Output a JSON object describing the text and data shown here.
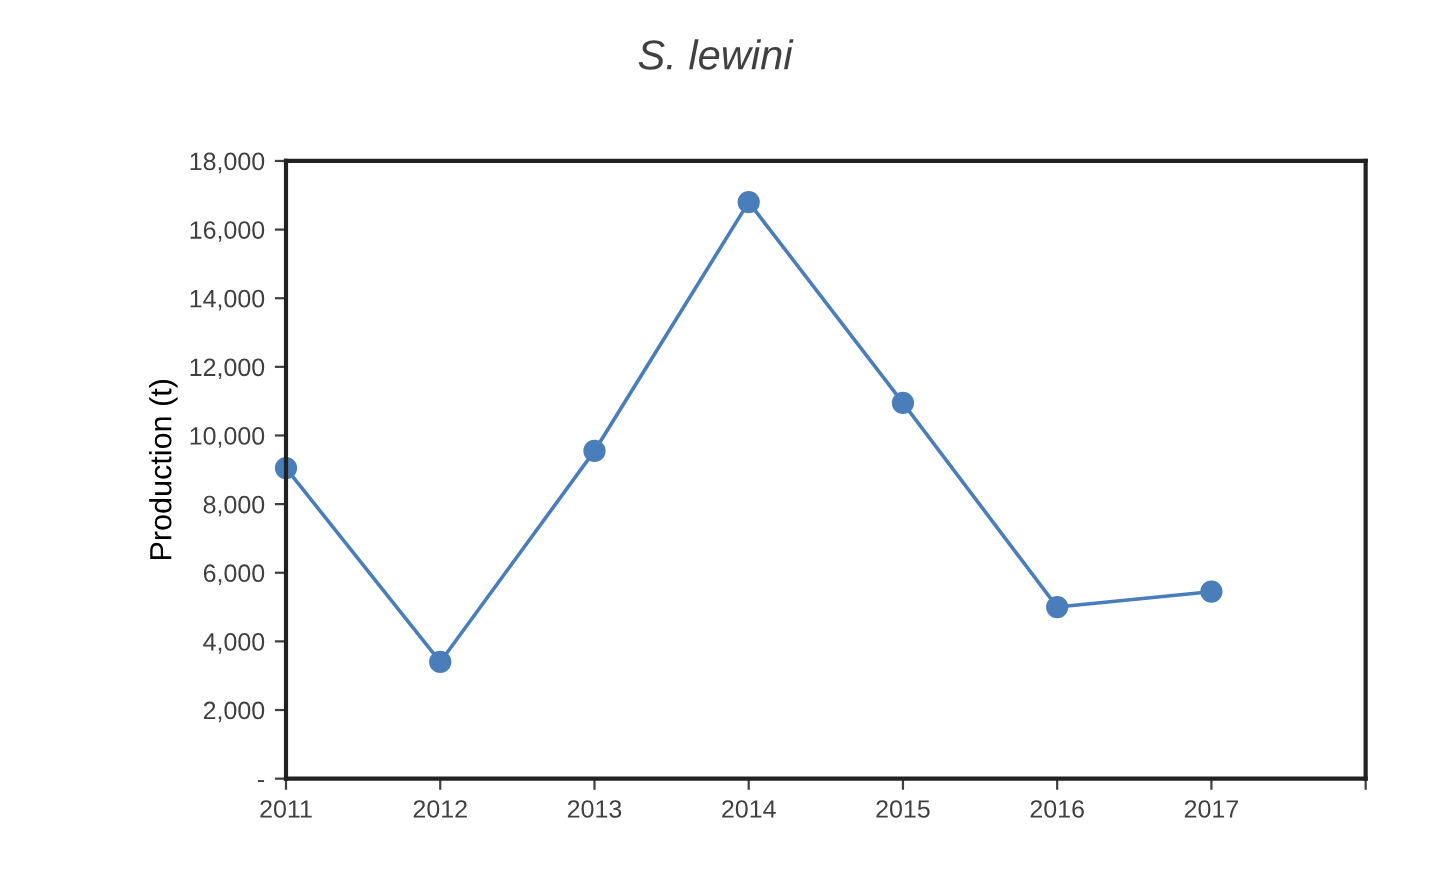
{
  "chart_data": {
    "type": "line",
    "title": "S. lewini",
    "ylabel": "Production (t)",
    "x": [
      2011,
      2012,
      2013,
      2014,
      2015,
      2016,
      2017
    ],
    "series": [
      {
        "color": "#4a7ebb",
        "values": [
          9050,
          3400,
          9550,
          16800,
          10950,
          5000,
          5450
        ]
      }
    ],
    "xlim": [
      2011,
      2018
    ],
    "xticks": [
      2011,
      2012,
      2013,
      2014,
      2015,
      2016,
      2017,
      {
        "value": 2018,
        "label": null
      }
    ],
    "ylim": [
      0,
      18000
    ],
    "yticks": [
      {
        "value": 0,
        "label": "-"
      },
      {
        "value": 2000,
        "label": "2,000"
      },
      {
        "value": 4000,
        "label": "4,000"
      },
      {
        "value": 6000,
        "label": "6,000"
      },
      {
        "value": 8000,
        "label": "8,000"
      },
      {
        "value": 10000,
        "label": "10,000"
      },
      {
        "value": 12000,
        "label": "12,000"
      },
      {
        "value": 14000,
        "label": "14,000"
      },
      {
        "value": 16000,
        "label": "16,000"
      },
      {
        "value": 18000,
        "label": "18,000"
      }
    ],
    "grid": false,
    "marker": "circle",
    "line_style": "solid"
  }
}
